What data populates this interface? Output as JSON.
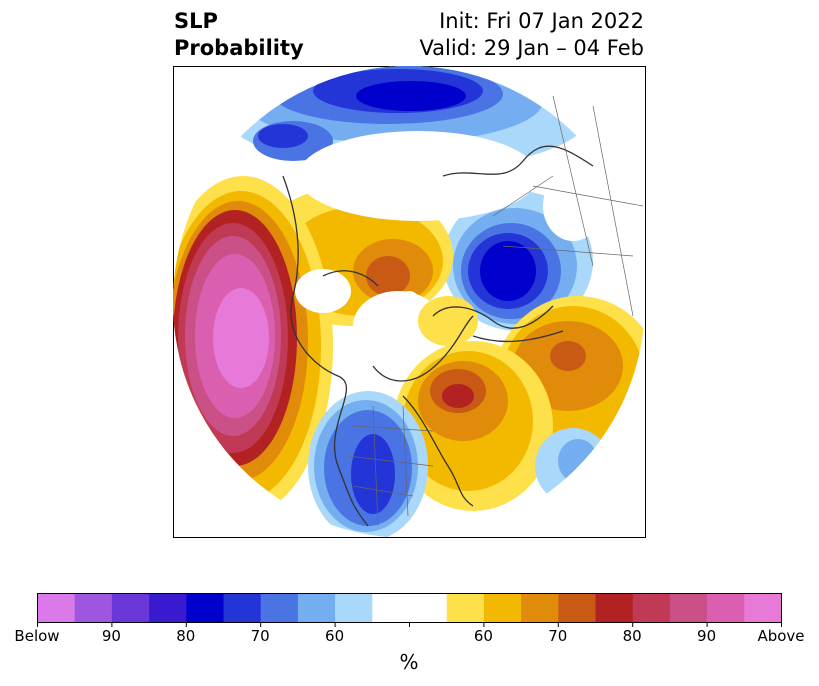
{
  "header": {
    "title_line1": "SLP",
    "title_line2": "Probability",
    "init_line": "Init: Fri 07 Jan 2022",
    "valid_line": "Valid: 29 Jan – 04 Feb"
  },
  "colorbar": {
    "colors": [
      "#d97ae8",
      "#9e55e0",
      "#6a38d8",
      "#3a1ad0",
      "#0000cc",
      "#2435d8",
      "#4a74e4",
      "#74aef0",
      "#aad8fa",
      "#ffffff",
      "#ffffff",
      "#fde04a",
      "#f3b800",
      "#e08b0a",
      "#c85a16",
      "#b22222",
      "#c03a55",
      "#cc5088",
      "#db5fb0",
      "#e77ad8"
    ],
    "tick_labels": [
      "Below",
      "90",
      "80",
      "70",
      "60",
      "",
      "60",
      "70",
      "80",
      "90",
      "Above"
    ],
    "unit": "%"
  },
  "colors": {
    "ocean_bg": "#ffffff",
    "coast": "#333333",
    "border": "#666666"
  }
}
